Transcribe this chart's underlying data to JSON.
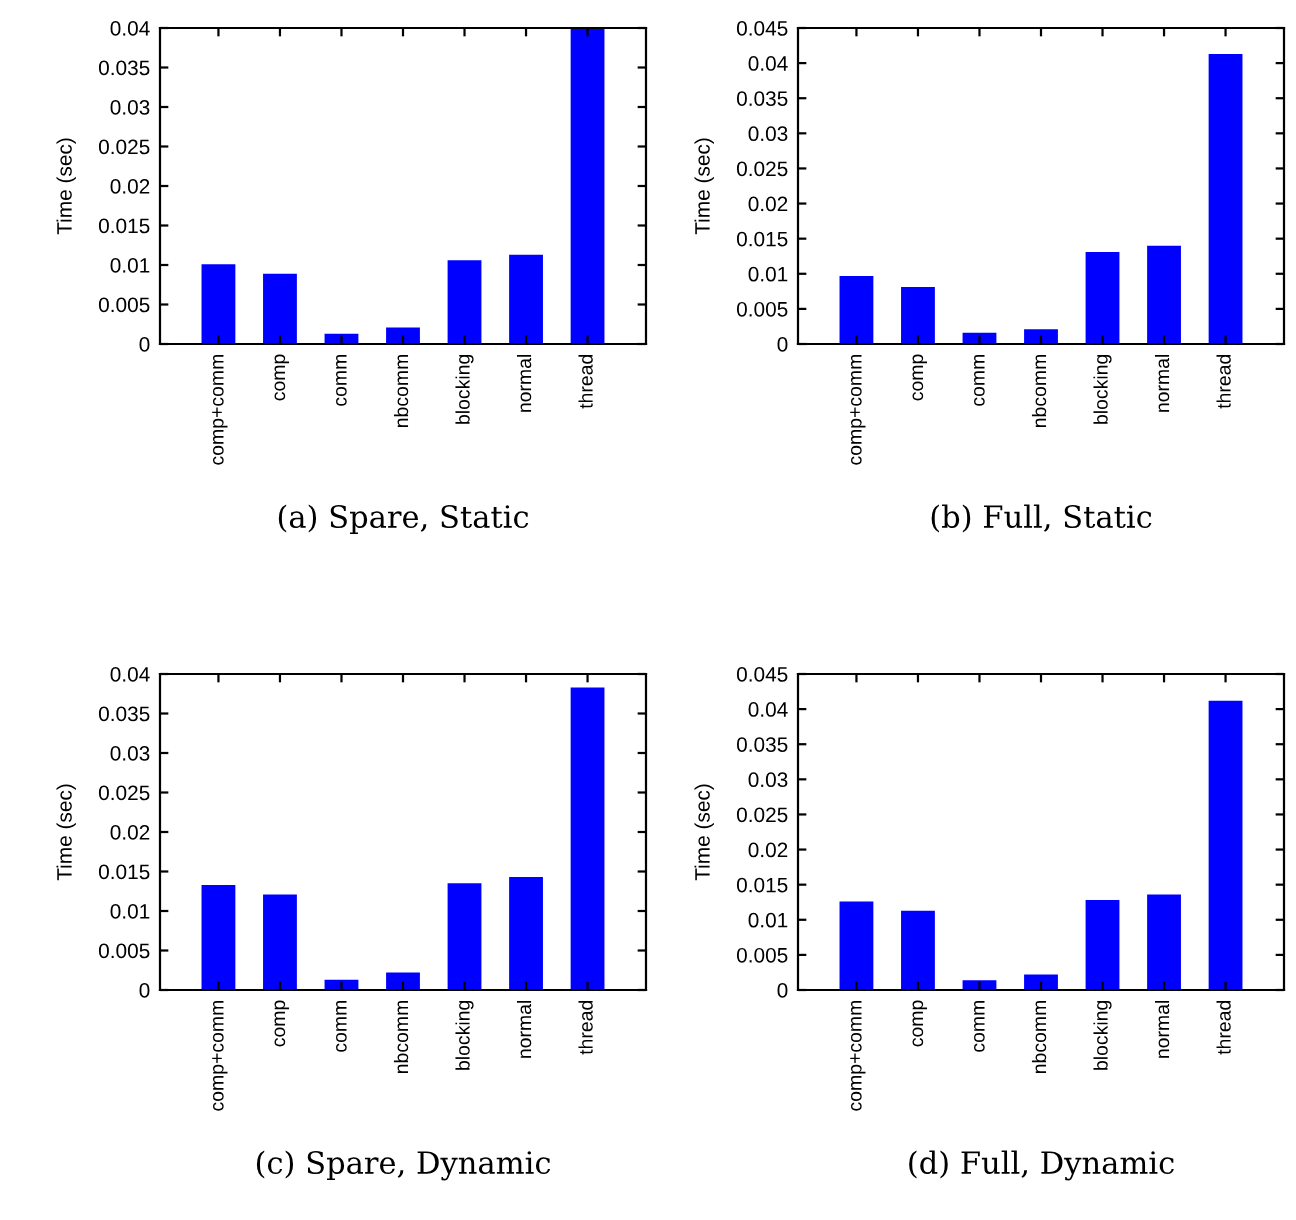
{
  "chart_data": [
    {
      "type": "bar",
      "xlabel": "(a) Spare, Static",
      "ylabel": "Time (sec)",
      "categories": [
        "comp+comm",
        "comp",
        "comm",
        "nbcomm",
        "blocking",
        "normal",
        "thread"
      ],
      "values": [
        0.0101,
        0.0089,
        0.0013,
        0.0021,
        0.0106,
        0.0113,
        0.04
      ],
      "color": "#0000ff",
      "ylim": [
        0,
        0.04
      ],
      "yticks": [
        0,
        0.005,
        0.01,
        0.015,
        0.02,
        0.025,
        0.03,
        0.035,
        0.04
      ],
      "grid": false
    },
    {
      "type": "bar",
      "xlabel": "(b) Full, Static",
      "ylabel": "Time (sec)",
      "categories": [
        "comp+comm",
        "comp",
        "comm",
        "nbcomm",
        "blocking",
        "normal",
        "thread"
      ],
      "values": [
        0.0097,
        0.0081,
        0.0016,
        0.0021,
        0.0131,
        0.014,
        0.0413
      ],
      "color": "#0000ff",
      "ylim": [
        0,
        0.045
      ],
      "yticks": [
        0,
        0.005,
        0.01,
        0.015,
        0.02,
        0.025,
        0.03,
        0.035,
        0.04,
        0.045
      ],
      "grid": false
    },
    {
      "type": "bar",
      "xlabel": "(c) Spare, Dynamic",
      "ylabel": "Time (sec)",
      "categories": [
        "comp+comm",
        "comp",
        "comm",
        "nbcomm",
        "blocking",
        "normal",
        "thread"
      ],
      "values": [
        0.0133,
        0.0121,
        0.0013,
        0.0022,
        0.0135,
        0.0143,
        0.0383
      ],
      "color": "#0000ff",
      "ylim": [
        0,
        0.04
      ],
      "yticks": [
        0,
        0.005,
        0.01,
        0.015,
        0.02,
        0.025,
        0.03,
        0.035,
        0.04
      ],
      "grid": false
    },
    {
      "type": "bar",
      "xlabel": "(d) Full, Dynamic",
      "ylabel": "Time (sec)",
      "categories": [
        "comp+comm",
        "comp",
        "comm",
        "nbcomm",
        "blocking",
        "normal",
        "thread"
      ],
      "values": [
        0.0126,
        0.0113,
        0.0014,
        0.0022,
        0.0128,
        0.0136,
        0.0412
      ],
      "color": "#0000ff",
      "ylim": [
        0,
        0.045
      ],
      "yticks": [
        0,
        0.005,
        0.01,
        0.015,
        0.02,
        0.025,
        0.03,
        0.035,
        0.04,
        0.045
      ],
      "grid": false
    }
  ]
}
